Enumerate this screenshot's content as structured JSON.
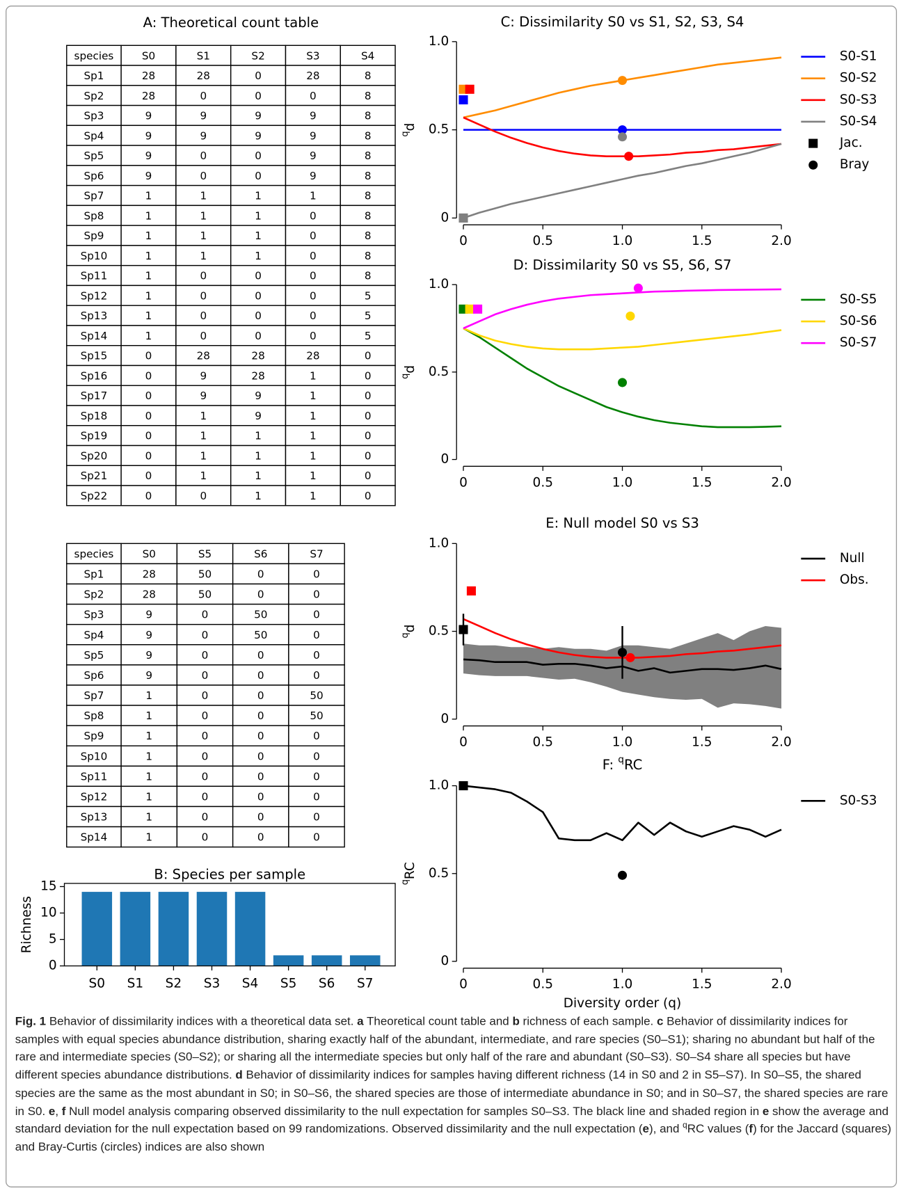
{
  "tables": [
    {
      "title": "A: Theoretical count table",
      "header": [
        "species",
        "S0",
        "S1",
        "S2",
        "S3",
        "S4"
      ],
      "rows": [
        [
          "Sp1",
          28,
          28,
          0,
          28,
          8
        ],
        [
          "Sp2",
          28,
          0,
          0,
          0,
          8
        ],
        [
          "Sp3",
          9,
          9,
          9,
          9,
          8
        ],
        [
          "Sp4",
          9,
          9,
          9,
          9,
          8
        ],
        [
          "Sp5",
          9,
          0,
          0,
          9,
          8
        ],
        [
          "Sp6",
          9,
          0,
          0,
          9,
          8
        ],
        [
          "Sp7",
          1,
          1,
          1,
          1,
          8
        ],
        [
          "Sp8",
          1,
          1,
          1,
          0,
          8
        ],
        [
          "Sp9",
          1,
          1,
          1,
          0,
          8
        ],
        [
          "Sp10",
          1,
          1,
          1,
          0,
          8
        ],
        [
          "Sp11",
          1,
          0,
          0,
          0,
          8
        ],
        [
          "Sp12",
          1,
          0,
          0,
          0,
          5
        ],
        [
          "Sp13",
          1,
          0,
          0,
          0,
          5
        ],
        [
          "Sp14",
          1,
          0,
          0,
          0,
          5
        ],
        [
          "Sp15",
          0,
          28,
          28,
          28,
          0
        ],
        [
          "Sp16",
          0,
          9,
          28,
          1,
          0
        ],
        [
          "Sp17",
          0,
          9,
          9,
          1,
          0
        ],
        [
          "Sp18",
          0,
          1,
          9,
          1,
          0
        ],
        [
          "Sp19",
          0,
          1,
          1,
          1,
          0
        ],
        [
          "Sp20",
          0,
          1,
          1,
          1,
          0
        ],
        [
          "Sp21",
          0,
          1,
          1,
          1,
          0
        ],
        [
          "Sp22",
          0,
          0,
          1,
          1,
          0
        ]
      ]
    },
    {
      "header": [
        "species",
        "S0",
        "S5",
        "S6",
        "S7"
      ],
      "rows": [
        [
          "Sp1",
          28,
          50,
          0,
          0
        ],
        [
          "Sp2",
          28,
          50,
          0,
          0
        ],
        [
          "Sp3",
          9,
          0,
          50,
          0
        ],
        [
          "Sp4",
          9,
          0,
          50,
          0
        ],
        [
          "Sp5",
          9,
          0,
          0,
          0
        ],
        [
          "Sp6",
          9,
          0,
          0,
          0
        ],
        [
          "Sp7",
          1,
          0,
          0,
          50
        ],
        [
          "Sp8",
          1,
          0,
          0,
          50
        ],
        [
          "Sp9",
          1,
          0,
          0,
          0
        ],
        [
          "Sp10",
          1,
          0,
          0,
          0
        ],
        [
          "Sp11",
          1,
          0,
          0,
          0
        ],
        [
          "Sp12",
          1,
          0,
          0,
          0
        ],
        [
          "Sp13",
          1,
          0,
          0,
          0
        ],
        [
          "Sp14",
          1,
          0,
          0,
          0
        ]
      ]
    }
  ],
  "chart_data": [
    {
      "type": "bar",
      "title": "B: Species per sample",
      "ylabel": "Richness",
      "categories": [
        "S0",
        "S1",
        "S2",
        "S3",
        "S4",
        "S5",
        "S6",
        "S7"
      ],
      "values": [
        14,
        14,
        14,
        14,
        14,
        2,
        2,
        2
      ],
      "color": "#1f77b4",
      "ylim": [
        0,
        15.6
      ],
      "yticks": [
        0,
        5,
        10,
        15
      ]
    },
    {
      "type": "line",
      "title": "C: Dissimilarity S0 vs S1, S2, S3, S4",
      "ylabel": [
        {
          "text": "q",
          "style": "sup"
        },
        "d"
      ],
      "x": [
        0,
        0.1,
        0.2,
        0.3,
        0.4,
        0.5,
        0.6,
        0.7,
        0.8,
        0.9,
        1,
        1.1,
        1.2,
        1.3,
        1.4,
        1.5,
        1.6,
        1.7,
        1.8,
        1.9,
        2
      ],
      "series": [
        {
          "name": "S0-S1",
          "color": "#0000ff",
          "values": [
            0.5,
            0.5,
            0.5,
            0.5,
            0.5,
            0.5,
            0.5,
            0.5,
            0.5,
            0.5,
            0.5,
            0.5,
            0.5,
            0.5,
            0.5,
            0.5,
            0.5,
            0.5,
            0.5,
            0.5,
            0.5
          ]
        },
        {
          "name": "S0-S2",
          "color": "#ff8c00",
          "values": [
            0.57,
            0.59,
            0.61,
            0.635,
            0.66,
            0.685,
            0.71,
            0.73,
            0.75,
            0.765,
            0.78,
            0.795,
            0.81,
            0.825,
            0.84,
            0.855,
            0.87,
            0.88,
            0.89,
            0.9,
            0.91
          ]
        },
        {
          "name": "S0-S3",
          "color": "#ff0000",
          "values": [
            0.57,
            0.53,
            0.49,
            0.455,
            0.425,
            0.4,
            0.38,
            0.365,
            0.355,
            0.35,
            0.35,
            0.35,
            0.355,
            0.36,
            0.37,
            0.375,
            0.385,
            0.39,
            0.4,
            0.41,
            0.42
          ]
        },
        {
          "name": "S0-S4",
          "color": "#808080",
          "values": [
            0,
            0.03,
            0.055,
            0.08,
            0.1,
            0.12,
            0.14,
            0.16,
            0.18,
            0.2,
            0.22,
            0.24,
            0.255,
            0.275,
            0.295,
            0.31,
            0.33,
            0.35,
            0.37,
            0.395,
            0.42
          ]
        }
      ],
      "points": [
        {
          "name": "Jac.",
          "marker": "square",
          "color": "#000000",
          "x": [
            0,
            0,
            0.04,
            0
          ],
          "values": [
            0.67,
            0.73,
            0.73,
            0
          ],
          "colors": [
            "#0000ff",
            "#ff8c00",
            "#ff0000",
            "#808080"
          ]
        },
        {
          "name": "Bray",
          "marker": "circle",
          "color": "#000000",
          "x": [
            1,
            1,
            1.04,
            1
          ],
          "values": [
            0.5,
            0.78,
            0.35,
            0.46
          ],
          "colors": [
            "#0000ff",
            "#ff8c00",
            "#ff0000",
            "#808080"
          ]
        }
      ],
      "xlim": [
        0,
        2
      ],
      "ylim": [
        0,
        1
      ],
      "xticks": [
        0,
        0.5,
        {
          "value": 1,
          "label": "1.0"
        },
        1.5,
        {
          "value": 2,
          "label": "2.0"
        }
      ],
      "yticks": [
        0,
        0.5,
        {
          "value": 1,
          "label": "1.0"
        }
      ]
    },
    {
      "type": "line",
      "title": "D: Dissimilarity S0 vs S5, S6, S7",
      "ylabel": [
        {
          "text": "q",
          "style": "sup"
        },
        "d"
      ],
      "x": [
        0,
        0.1,
        0.2,
        0.3,
        0.4,
        0.5,
        0.6,
        0.7,
        0.8,
        0.9,
        1,
        1.1,
        1.2,
        1.3,
        1.4,
        1.5,
        1.6,
        1.7,
        1.8,
        1.9,
        2
      ],
      "series": [
        {
          "name": "S0-S5",
          "color": "#008000",
          "values": [
            0.75,
            0.7,
            0.64,
            0.58,
            0.52,
            0.47,
            0.42,
            0.38,
            0.34,
            0.3,
            0.27,
            0.245,
            0.225,
            0.21,
            0.2,
            0.19,
            0.185,
            0.185,
            0.185,
            0.187,
            0.19
          ]
        },
        {
          "name": "S0-S6",
          "color": "#ffd700",
          "values": [
            0.75,
            0.71,
            0.68,
            0.66,
            0.645,
            0.635,
            0.63,
            0.63,
            0.63,
            0.635,
            0.64,
            0.645,
            0.655,
            0.665,
            0.675,
            0.685,
            0.695,
            0.705,
            0.715,
            0.728,
            0.74
          ]
        },
        {
          "name": "S0-S7",
          "color": "#ff00ff",
          "values": [
            0.75,
            0.79,
            0.83,
            0.86,
            0.885,
            0.905,
            0.92,
            0.93,
            0.94,
            0.945,
            0.95,
            0.955,
            0.96,
            0.962,
            0.965,
            0.967,
            0.969,
            0.97,
            0.971,
            0.972,
            0.973
          ]
        }
      ],
      "points": [
        {
          "marker": "square",
          "x": [
            0,
            0.04,
            0.09
          ],
          "values": [
            0.86,
            0.86,
            0.86
          ],
          "colors": [
            "#008000",
            "#ffd700",
            "#ff00ff"
          ]
        },
        {
          "marker": "circle",
          "x": [
            1,
            1.05,
            1.1
          ],
          "values": [
            0.44,
            0.82,
            0.98
          ],
          "colors": [
            "#008000",
            "#ffd700",
            "#ff00ff"
          ]
        }
      ],
      "xlim": [
        0,
        2
      ],
      "ylim": [
        0,
        1
      ],
      "xticks": [
        0,
        0.5,
        {
          "value": 1,
          "label": "1.0"
        },
        1.5,
        {
          "value": 2,
          "label": "2.0"
        }
      ],
      "yticks": [
        0,
        0.5,
        {
          "value": 1,
          "label": "1.0"
        }
      ]
    },
    {
      "type": "line",
      "title": "E: Null model S0 vs S3",
      "ylabel": [
        {
          "text": "q",
          "style": "sup"
        },
        "d"
      ],
      "x": [
        0,
        0.1,
        0.2,
        0.3,
        0.4,
        0.5,
        0.6,
        0.7,
        0.8,
        0.9,
        1,
        1.1,
        1.2,
        1.3,
        1.4,
        1.5,
        1.6,
        1.7,
        1.8,
        1.9,
        2
      ],
      "band": {
        "color": "#808080",
        "upper": [
          0.43,
          0.42,
          0.42,
          0.41,
          0.41,
          0.4,
          0.41,
          0.4,
          0.4,
          0.39,
          0.42,
          0.42,
          0.41,
          0.4,
          0.43,
          0.46,
          0.49,
          0.45,
          0.5,
          0.53,
          0.52
        ],
        "lower": [
          0.26,
          0.25,
          0.245,
          0.245,
          0.245,
          0.235,
          0.225,
          0.23,
          0.21,
          0.185,
          0.155,
          0.14,
          0.125,
          0.115,
          0.11,
          0.115,
          0.065,
          0.09,
          0.085,
          0.075,
          0.06
        ]
      },
      "series": [
        {
          "name": "Null",
          "color": "#000000",
          "values": [
            0.34,
            0.335,
            0.325,
            0.325,
            0.325,
            0.31,
            0.315,
            0.315,
            0.305,
            0.29,
            0.3,
            0.275,
            0.29,
            0.265,
            0.275,
            0.285,
            0.285,
            0.28,
            0.29,
            0.305,
            0.285
          ]
        },
        {
          "name": "Obs.",
          "color": "#ff0000",
          "values": [
            0.57,
            0.53,
            0.49,
            0.455,
            0.425,
            0.4,
            0.38,
            0.365,
            0.355,
            0.35,
            0.35,
            0.35,
            0.355,
            0.36,
            0.37,
            0.375,
            0.385,
            0.39,
            0.4,
            0.41,
            0.42
          ]
        }
      ],
      "points": [
        {
          "marker": "square",
          "x": [
            0,
            0.05
          ],
          "values": [
            0.51,
            0.73
          ],
          "errors": [
            0.09,
            null
          ],
          "colors": [
            "#000000",
            "#ff0000"
          ]
        },
        {
          "marker": "circle",
          "x": [
            1,
            1.05
          ],
          "values": [
            0.38,
            0.35
          ],
          "errors": [
            0.15,
            null
          ],
          "colors": [
            "#000000",
            "#ff0000"
          ]
        }
      ],
      "xlim": [
        0,
        2
      ],
      "ylim": [
        0,
        1
      ],
      "xticks": [
        0,
        0.5,
        {
          "value": 1,
          "label": "1.0"
        },
        1.5,
        {
          "value": 2,
          "label": "2.0"
        }
      ],
      "yticks": [
        0,
        0.5,
        {
          "value": 1,
          "label": "1.0"
        }
      ]
    },
    {
      "type": "line",
      "title": [
        "F: ",
        {
          "text": "q",
          "style": "sup"
        },
        "RC"
      ],
      "ylabel": [
        {
          "text": "q",
          "style": "sup"
        },
        "RC"
      ],
      "xlabel": "Diversity order (q)",
      "x": [
        0,
        0.1,
        0.2,
        0.3,
        0.4,
        0.5,
        0.6,
        0.7,
        0.8,
        0.9,
        1,
        1.1,
        1.2,
        1.3,
        1.4,
        1.5,
        1.6,
        1.7,
        1.8,
        1.9,
        2
      ],
      "series": [
        {
          "name": "S0-S3",
          "color": "#000000",
          "values": [
            1,
            0.99,
            0.98,
            0.96,
            0.91,
            0.85,
            0.7,
            0.69,
            0.69,
            0.73,
            0.69,
            0.79,
            0.72,
            0.79,
            0.74,
            0.71,
            0.74,
            0.77,
            0.75,
            0.71,
            0.75
          ]
        }
      ],
      "points": [
        {
          "marker": "square",
          "x": [
            0
          ],
          "values": [
            1
          ],
          "colors": [
            "#000000"
          ]
        },
        {
          "marker": "circle",
          "x": [
            1
          ],
          "values": [
            0.49
          ],
          "colors": [
            "#000000"
          ]
        }
      ],
      "xlim": [
        0,
        2
      ],
      "ylim": [
        0,
        1
      ],
      "xticks": [
        0,
        0.5,
        {
          "value": 1,
          "label": "1.0"
        },
        1.5,
        {
          "value": 2,
          "label": "2.0"
        }
      ],
      "yticks": [
        0,
        0.5,
        {
          "value": 1,
          "label": "1.0"
        }
      ]
    }
  ],
  "caption": [
    {
      "text": "Fig. 1",
      "style": "bold"
    },
    " Behavior of dissimilarity indices with a theoretical data set. ",
    {
      "text": "a",
      "style": "bold"
    },
    " Theoretical count table and ",
    {
      "text": "b",
      "style": "bold"
    },
    " richness of each sample. ",
    {
      "text": "c",
      "style": "bold"
    },
    " Behavior of dissimilarity indices for samples with equal species abundance distribution, sharing exactly half of the abundant, intermediate, and rare species (S0–S1); sharing no abundant but half of the rare and intermediate species (S0–S2); or sharing all the intermediate species but only half of the rare and abundant (S0–S3). S0–S4 share all species but have different species abundance distributions. ",
    {
      "text": "d",
      "style": "bold"
    },
    " Behavior of dissimilarity indices for samples having different richness (14 in S0 and 2 in S5–S7). In S0–S5, the shared species are the same as the most abundant in S0; in S0–S6, the shared species are those of intermediate abundance in S0; and in S0–S7, the shared species are rare in S0. ",
    {
      "text": "e",
      "style": "bold"
    },
    ", ",
    {
      "text": "f",
      "style": "bold"
    },
    " Null model analysis comparing observed dissimilarity to the null expectation for samples S0–S3. The black line and shaded region in ",
    {
      "text": "e",
      "style": "bold"
    },
    " show the average and standard deviation for the null expectation based on 99 randomizations. Observed dissimilarity and the null expectation (",
    {
      "text": "e",
      "style": "bold"
    },
    "), and ",
    {
      "text": "q",
      "style": "sup"
    },
    "RC values (",
    {
      "text": "f",
      "style": "bold"
    },
    ") for the Jaccard (squares) and Bray-Curtis (circles) indices are also shown"
  ]
}
